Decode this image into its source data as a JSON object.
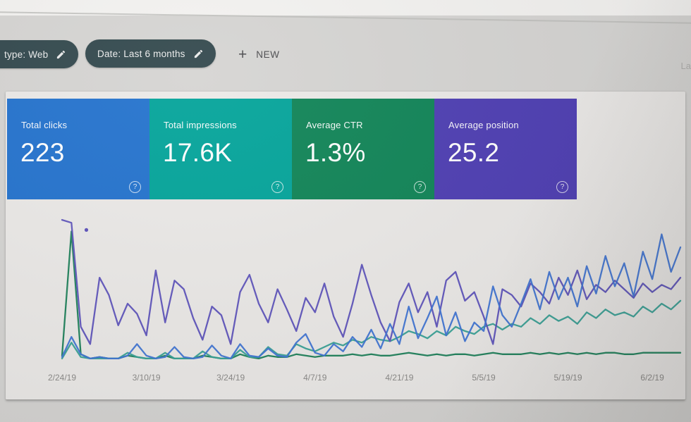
{
  "window": {
    "background_color": "#d5d4d2",
    "sheet_color": "#ebe9e7"
  },
  "toolbar": {
    "chips": [
      {
        "label": "type: Web",
        "icon": "edit-icon"
      },
      {
        "label": "Date: Last 6 months",
        "icon": "edit-icon"
      }
    ],
    "new_button": {
      "plus": "+",
      "label": "NEW"
    },
    "top_right_clipped_text": "La",
    "chip_color": "#30464b"
  },
  "metric_cards": [
    {
      "label": "Total clicks",
      "value": "223",
      "color": "#2171cd",
      "help_icon": "?"
    },
    {
      "label": "Total impressions",
      "value": "17.6K",
      "color": "#00a399",
      "help_icon": "?"
    },
    {
      "label": "Average CTR",
      "value": "1.3%",
      "color": "#0d8355",
      "help_icon": "?"
    },
    {
      "label": "Average position",
      "value": "25.2",
      "color": "#4c3cb2",
      "help_icon": "?"
    }
  ],
  "chart_data": {
    "type": "line",
    "title": "",
    "xlabel": "",
    "ylabel": "",
    "grid": "none",
    "legend": "none",
    "y_axis": "unlabeled; values are estimated percent of plot height (0 = baseline, 100 = top)",
    "x_labels": [
      "2/24/19",
      "3/10/19",
      "3/24/19",
      "4/7/19",
      "4/21/19",
      "5/5/19",
      "5/19/19",
      "6/2/19"
    ],
    "x_label_indices": [
      0,
      9,
      18,
      27,
      36,
      45,
      54,
      63
    ],
    "n_points": 67,
    "series": [
      {
        "name": "CTR",
        "color": "#177d55",
        "values": [
          4,
          90,
          5,
          2,
          3,
          2,
          2,
          4,
          3,
          2,
          2,
          4,
          2,
          2,
          2,
          4,
          3,
          2,
          2,
          5,
          3,
          2,
          4,
          3,
          3,
          5,
          4,
          3,
          4,
          4,
          4,
          5,
          4,
          5,
          4,
          4,
          5,
          6,
          5,
          4,
          5,
          4,
          5,
          5,
          4,
          5,
          6,
          5,
          5,
          5,
          6,
          5,
          6,
          5,
          6,
          5,
          6,
          5,
          6,
          6,
          5,
          5,
          6,
          6,
          6,
          6,
          6
        ]
      },
      {
        "name": "Impressions",
        "color": "#35a095",
        "values": [
          2,
          13,
          3,
          2,
          2,
          2,
          2,
          6,
          3,
          2,
          2,
          6,
          2,
          2,
          2,
          7,
          3,
          2,
          2,
          8,
          3,
          3,
          10,
          5,
          4,
          12,
          9,
          7,
          10,
          13,
          11,
          15,
          13,
          17,
          15,
          14,
          17,
          21,
          19,
          16,
          21,
          18,
          24,
          21,
          19,
          24,
          26,
          22,
          26,
          24,
          30,
          26,
          32,
          28,
          31,
          26,
          34,
          30,
          36,
          32,
          34,
          31,
          38,
          34,
          40,
          36,
          42
        ]
      },
      {
        "name": "Position",
        "color": "#5b50ba",
        "values": [
          98,
          96,
          24,
          12,
          58,
          46,
          25,
          40,
          33,
          18,
          63,
          27,
          56,
          50,
          30,
          15,
          38,
          32,
          12,
          48,
          60,
          40,
          27,
          50,
          36,
          21,
          44,
          34,
          54,
          31,
          17,
          40,
          67,
          46,
          27,
          14,
          41,
          54,
          34,
          48,
          24,
          56,
          62,
          42,
          48,
          31,
          12,
          50,
          46,
          38,
          54,
          48,
          40,
          58,
          46,
          63,
          43,
          53,
          48,
          56,
          50,
          44,
          54,
          48,
          53,
          50,
          58
        ]
      },
      {
        "name": "Clicks",
        "color": "#3d73d4",
        "values": [
          3,
          17,
          5,
          2,
          3,
          2,
          2,
          4,
          12,
          4,
          2,
          3,
          10,
          3,
          2,
          3,
          11,
          4,
          2,
          12,
          4,
          3,
          9,
          4,
          3,
          13,
          19,
          6,
          4,
          12,
          7,
          17,
          10,
          22,
          9,
          26,
          12,
          38,
          16,
          30,
          45,
          18,
          34,
          14,
          27,
          21,
          52,
          32,
          24,
          40,
          57,
          36,
          62,
          43,
          58,
          38,
          66,
          47,
          73,
          52,
          68,
          45,
          76,
          57,
          88,
          62,
          79
        ]
      }
    ],
    "stray_point": {
      "series": "Position",
      "index": 2.6,
      "value": 91
    }
  }
}
